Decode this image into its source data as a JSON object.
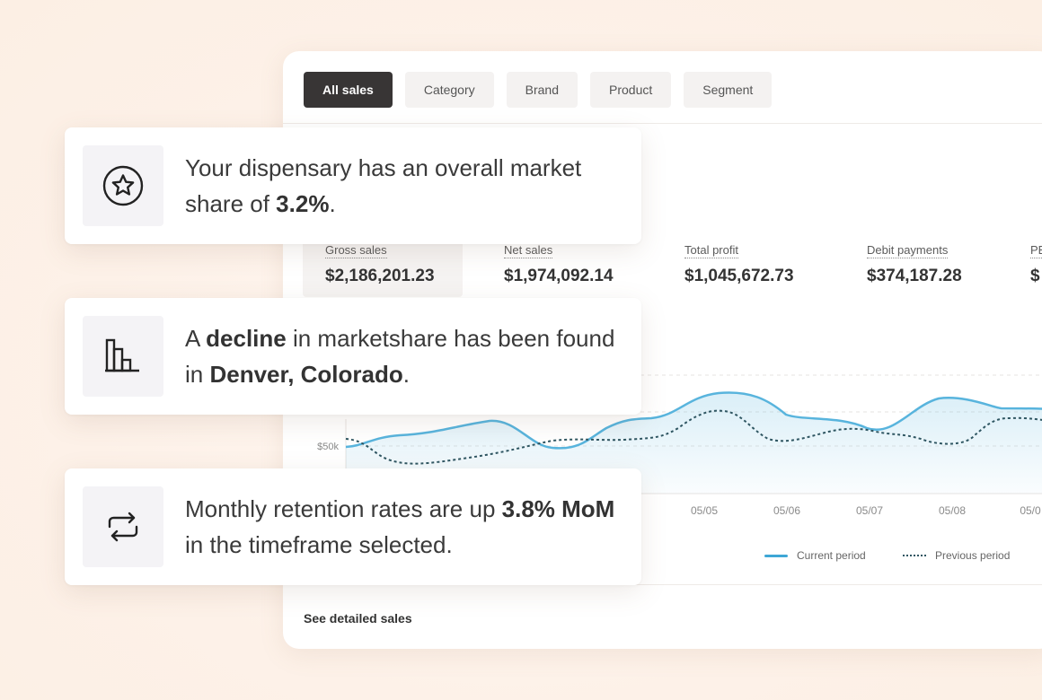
{
  "tabs": [
    {
      "label": "All sales",
      "active": true
    },
    {
      "label": "Category",
      "active": false
    },
    {
      "label": "Brand",
      "active": false
    },
    {
      "label": "Product",
      "active": false
    },
    {
      "label": "Segment",
      "active": false
    }
  ],
  "metrics": [
    {
      "label": "Gross sales",
      "value": "$2,186,201.23"
    },
    {
      "label": "Net sales",
      "value": "$1,974,092.14"
    },
    {
      "label": "Total profit",
      "value": "$1,045,672.73"
    },
    {
      "label": "Debit payments",
      "value": "$374,187.28"
    },
    {
      "label": "PE",
      "value": "$"
    }
  ],
  "chart": {
    "y_tick_label": "$50k",
    "x_tick_labels": [
      "05/05",
      "05/06",
      "05/07",
      "05/08",
      "05/0"
    ],
    "legend": {
      "current": "Current period",
      "previous": "Previous period"
    },
    "colors": {
      "current": "#58b4dd",
      "previous": "#2f5662"
    }
  },
  "footer": {
    "link_label": "See detailed sales"
  },
  "insights": [
    {
      "icon": "star-badge-icon",
      "parts": [
        {
          "text": "Your dispensary has an overall market share of ",
          "bold": false
        },
        {
          "text": "3.2%",
          "bold": true
        },
        {
          "text": ".",
          "bold": false
        }
      ]
    },
    {
      "icon": "bar-chart-icon",
      "parts": [
        {
          "text": "A ",
          "bold": false
        },
        {
          "text": "decline",
          "bold": true
        },
        {
          "text": " in marketshare has been found in ",
          "bold": false
        },
        {
          "text": "Denver, Colorado",
          "bold": true
        },
        {
          "text": ".",
          "bold": false
        }
      ]
    },
    {
      "icon": "repeat-arrows-icon",
      "parts": [
        {
          "text": "Monthly retention rates are up ",
          "bold": false
        },
        {
          "text": "3.8% MoM",
          "bold": true
        },
        {
          "text": " in the timeframe selected.",
          "bold": false
        }
      ]
    }
  ]
}
